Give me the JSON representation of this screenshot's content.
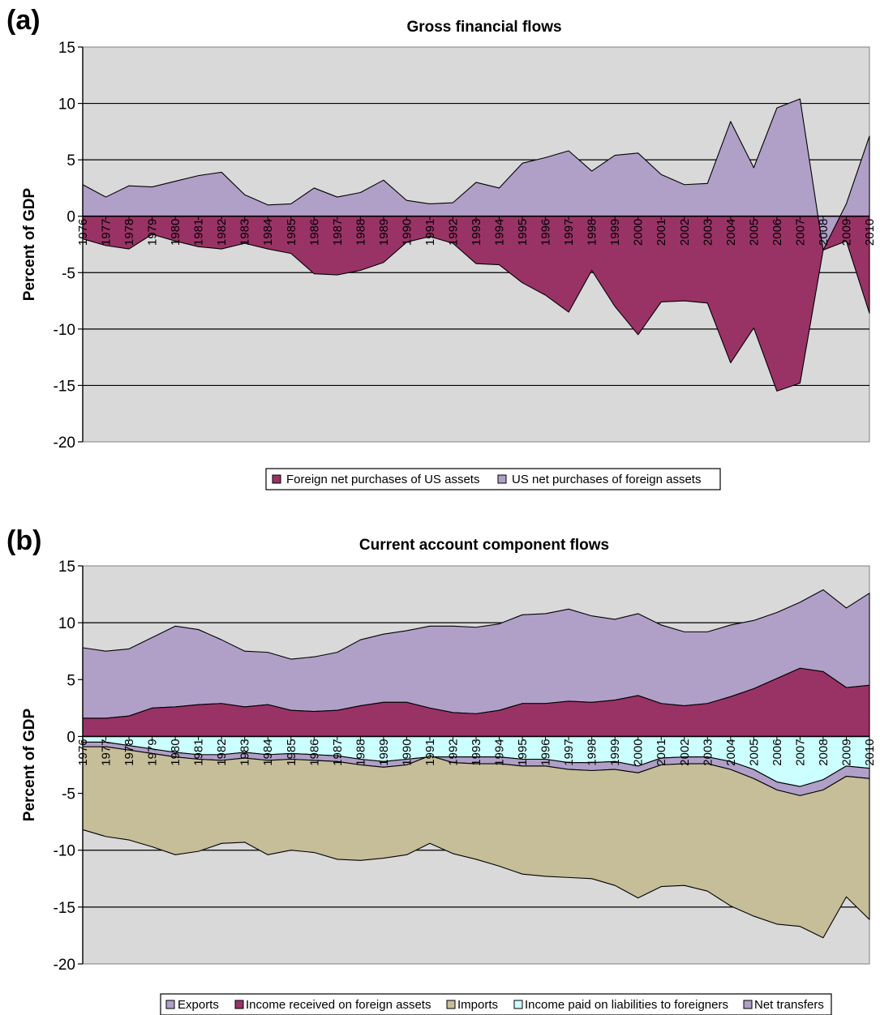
{
  "chart_data": [
    {
      "panel_label": "(a)",
      "type": "area",
      "title": "Gross financial flows",
      "ylabel": "Percent of GDP",
      "xlabel": "",
      "ylim": [
        -20,
        15
      ],
      "yticks": [
        "15",
        "10",
        "5",
        "0",
        "-5",
        "-10",
        "-15",
        "-20"
      ],
      "x": [
        "1976",
        "1977",
        "1978",
        "1979",
        "1980",
        "1981",
        "1982",
        "1983",
        "1984",
        "1985",
        "1986",
        "1987",
        "1988",
        "1989",
        "1990",
        "1991",
        "1992",
        "1993",
        "1994",
        "1995",
        "1996",
        "1997",
        "1998",
        "1999",
        "2000",
        "2001",
        "2002",
        "2003",
        "2004",
        "2005",
        "2006",
        "2007",
        "2008",
        "2009",
        "2010"
      ],
      "series": [
        {
          "name": "Foreign net purchases of US assets",
          "color": "#993366",
          "values": [
            -2.0,
            -2.6,
            -2.9,
            -1.6,
            -2.2,
            -2.7,
            -2.9,
            -2.4,
            -2.9,
            -3.3,
            -5.1,
            -5.2,
            -4.8,
            -4.1,
            -2.3,
            -1.8,
            -2.4,
            -4.2,
            -4.3,
            -5.9,
            -7.0,
            -8.5,
            -4.8,
            -8.0,
            -10.5,
            -7.6,
            -7.5,
            -7.7,
            -13.0,
            -9.9,
            -15.5,
            -14.8,
            -3.0,
            -2.2,
            -8.6
          ]
        },
        {
          "name": "US net purchases of foreign assets",
          "color": "#b0a0c8",
          "values": [
            2.8,
            1.7,
            2.7,
            2.6,
            3.1,
            3.6,
            3.9,
            1.9,
            1.0,
            1.1,
            2.5,
            1.7,
            2.1,
            3.2,
            1.4,
            1.1,
            1.2,
            3.0,
            2.5,
            4.7,
            5.2,
            5.8,
            4.0,
            5.4,
            5.6,
            3.7,
            2.8,
            2.9,
            8.4,
            4.3,
            9.6,
            10.4,
            -3.0,
            1.1,
            7.1
          ]
        }
      ]
    },
    {
      "panel_label": "(b)",
      "type": "area",
      "title": "Current account component flows",
      "ylabel": "Percent of GDP",
      "xlabel": "",
      "ylim": [
        -20,
        15
      ],
      "yticks": [
        "15",
        "10",
        "5",
        "0",
        "-5",
        "-10",
        "-15",
        "-20"
      ],
      "x": [
        "1976",
        "1977",
        "1978",
        "1979",
        "1980",
        "1981",
        "1982",
        "1983",
        "1984",
        "1985",
        "1986",
        "1987",
        "1988",
        "1989",
        "1990",
        "1991",
        "1992",
        "1993",
        "1994",
        "1995",
        "1996",
        "1997",
        "1998",
        "1999",
        "2000",
        "2001",
        "2002",
        "2003",
        "2004",
        "2005",
        "2006",
        "2007",
        "2008",
        "2009",
        "2010"
      ],
      "series": [
        {
          "name": "Exports",
          "color": "#b0a0c8",
          "values": [
            6.2,
            5.9,
            5.9,
            6.2,
            7.1,
            6.6,
            5.6,
            4.9,
            4.6,
            4.5,
            4.8,
            5.1,
            5.8,
            6.0,
            6.3,
            7.2,
            7.6,
            7.6,
            7.6,
            7.8,
            7.9,
            8.1,
            7.6,
            7.1,
            7.2,
            6.9,
            6.5,
            6.3,
            6.3,
            6.0,
            5.8,
            5.8,
            7.2,
            7.0,
            8.1
          ]
        },
        {
          "name": "Income received on foreign assets",
          "color": "#993366",
          "values": [
            1.6,
            1.6,
            1.8,
            2.5,
            2.6,
            2.8,
            2.9,
            2.6,
            2.8,
            2.3,
            2.2,
            2.3,
            2.7,
            3.0,
            3.0,
            2.5,
            2.1,
            2.0,
            2.3,
            2.9,
            2.9,
            3.1,
            3.0,
            3.2,
            3.6,
            2.9,
            2.7,
            2.9,
            3.5,
            4.2,
            5.1,
            6.0,
            5.7,
            4.3,
            4.5
          ]
        },
        {
          "name": "Imports",
          "color": "#c6bd99",
          "values": [
            -7.3,
            -7.9,
            -7.9,
            -8.2,
            -8.6,
            -8.1,
            -7.3,
            -7.4,
            -8.3,
            -8.0,
            -8.1,
            -8.6,
            -8.4,
            -8.0,
            -7.9,
            -7.7,
            -8.0,
            -8.4,
            -9.0,
            -9.5,
            -9.7,
            -9.5,
            -9.5,
            -10.2,
            -11.0,
            -10.7,
            -10.7,
            -11.2,
            -12.0,
            -12.1,
            -11.8,
            -11.5,
            -13.0,
            -10.6,
            -12.4
          ]
        },
        {
          "name": "Income paid on liabilities to foreigners",
          "color": "#ccffff",
          "values": [
            -0.5,
            -0.5,
            -0.8,
            -1.1,
            -1.4,
            -1.6,
            -1.6,
            -1.4,
            -1.6,
            -1.5,
            -1.6,
            -1.7,
            -2.0,
            -2.2,
            -2.0,
            -1.8,
            -1.8,
            -1.8,
            -1.8,
            -2.0,
            -2.0,
            -2.3,
            -2.3,
            -2.2,
            -2.6,
            -1.9,
            -1.8,
            -1.8,
            -2.2,
            -2.9,
            -4.0,
            -4.4,
            -3.8,
            -2.6,
            -2.8
          ]
        },
        {
          "name": "Net transfers",
          "color": "#b0a0c8",
          "values": [
            -0.4,
            -0.4,
            -0.4,
            -0.4,
            -0.4,
            -0.4,
            -0.5,
            -0.5,
            -0.5,
            -0.5,
            -0.5,
            -0.5,
            -0.5,
            -0.5,
            -0.5,
            0.1,
            -0.5,
            -0.6,
            -0.6,
            -0.6,
            -0.6,
            -0.6,
            -0.7,
            -0.7,
            -0.6,
            -0.6,
            -0.6,
            -0.6,
            -0.7,
            -0.8,
            -0.7,
            -0.8,
            -0.9,
            -0.9,
            -0.9
          ]
        }
      ]
    }
  ]
}
